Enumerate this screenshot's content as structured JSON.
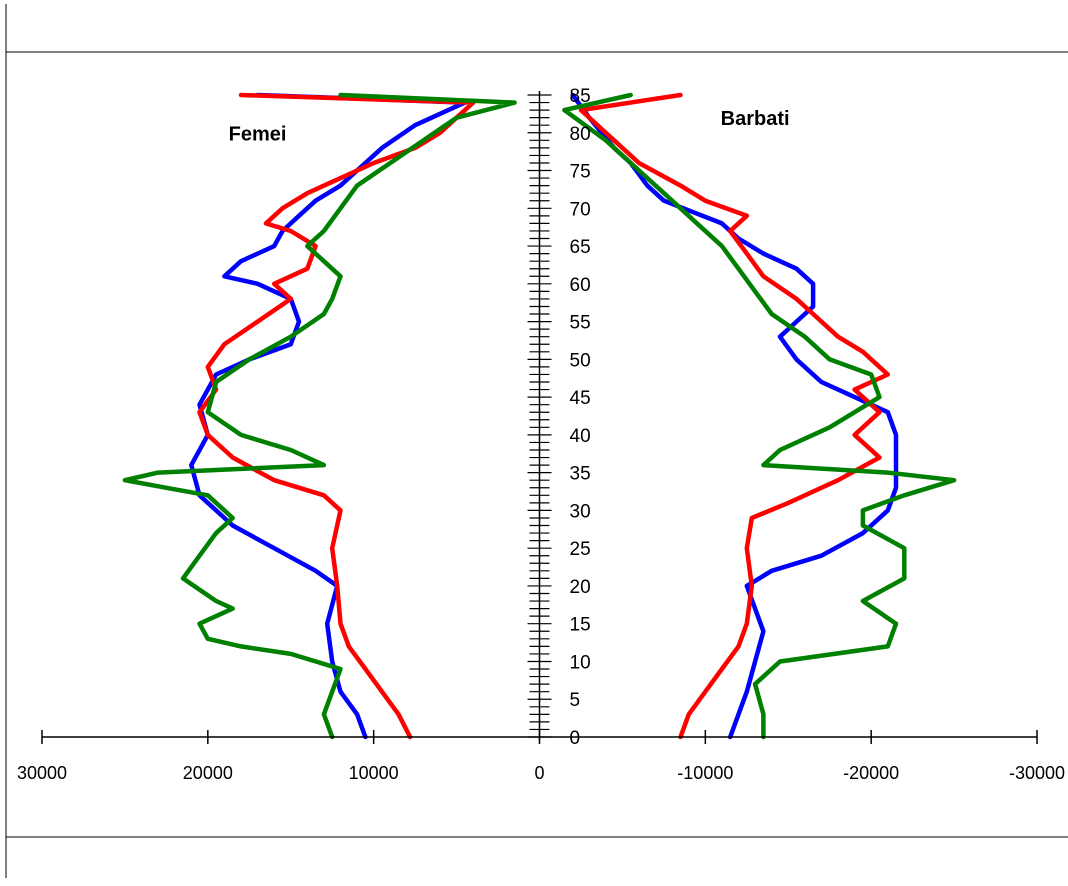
{
  "chart_data": {
    "type": "line",
    "title": "",
    "xlabel": "",
    "ylabel": "",
    "xlim": [
      30000,
      -30000
    ],
    "ylim": [
      0,
      85
    ],
    "grid": false,
    "legend": "none",
    "x_tick_values": [
      30000,
      20000,
      10000,
      0,
      -10000,
      -20000,
      -30000
    ],
    "x_tick_labels": [
      "30000",
      "20000",
      "10000",
      "0",
      "-10000",
      "-20000",
      "-30000"
    ],
    "y_tick_values": [
      0,
      5,
      10,
      15,
      20,
      25,
      30,
      35,
      40,
      45,
      50,
      55,
      60,
      65,
      70,
      75,
      80,
      85
    ],
    "y_tick_labels": [
      "0",
      "5",
      "10",
      "15",
      "20",
      "25",
      "30",
      "35",
      "40",
      "45",
      "50",
      "55",
      "60",
      "65",
      "70",
      "75",
      "80",
      "85"
    ],
    "annotations": [
      {
        "text": "Femei",
        "x": 17000,
        "y": 79
      },
      {
        "text": "Barbati",
        "x": -13000,
        "y": 81
      }
    ],
    "series": [
      {
        "color": "#0000ff",
        "side": "left",
        "points": [
          [
            10500,
            0
          ],
          [
            11000,
            3
          ],
          [
            12000,
            6
          ],
          [
            12500,
            10
          ],
          [
            12800,
            15
          ],
          [
            12200,
            20
          ],
          [
            13500,
            22
          ],
          [
            16000,
            25
          ],
          [
            18500,
            28
          ],
          [
            20500,
            32
          ],
          [
            21000,
            36
          ],
          [
            20000,
            40
          ],
          [
            20500,
            44
          ],
          [
            19500,
            48
          ],
          [
            17500,
            50
          ],
          [
            15000,
            52
          ],
          [
            14500,
            55
          ],
          [
            15000,
            58
          ],
          [
            17000,
            60
          ],
          [
            19000,
            61
          ],
          [
            18000,
            63
          ],
          [
            16000,
            65
          ],
          [
            15500,
            67
          ],
          [
            14500,
            69
          ],
          [
            13500,
            71
          ],
          [
            12000,
            73
          ],
          [
            11000,
            75
          ],
          [
            9500,
            78
          ],
          [
            7500,
            81
          ],
          [
            5500,
            83
          ],
          [
            4500,
            84
          ],
          [
            17000,
            85
          ]
        ]
      },
      {
        "color": "#ff0000",
        "side": "left",
        "points": [
          [
            7800,
            0
          ],
          [
            8500,
            3
          ],
          [
            9500,
            6
          ],
          [
            10500,
            9
          ],
          [
            11500,
            12
          ],
          [
            12000,
            15
          ],
          [
            12200,
            20
          ],
          [
            12500,
            25
          ],
          [
            12000,
            30
          ],
          [
            13000,
            32
          ],
          [
            16000,
            34
          ],
          [
            18500,
            37
          ],
          [
            20000,
            40
          ],
          [
            20500,
            43
          ],
          [
            19500,
            46
          ],
          [
            20000,
            49
          ],
          [
            19000,
            52
          ],
          [
            17000,
            55
          ],
          [
            15000,
            58
          ],
          [
            16000,
            60
          ],
          [
            14000,
            62
          ],
          [
            13500,
            65
          ],
          [
            15000,
            67
          ],
          [
            16500,
            68
          ],
          [
            15500,
            70
          ],
          [
            14000,
            72
          ],
          [
            12000,
            74
          ],
          [
            10000,
            76
          ],
          [
            7500,
            78
          ],
          [
            6000,
            80
          ],
          [
            5000,
            82
          ],
          [
            4000,
            84
          ],
          [
            18000,
            85
          ]
        ]
      },
      {
        "color": "#008000",
        "side": "left",
        "points": [
          [
            12500,
            0
          ],
          [
            13000,
            3
          ],
          [
            12500,
            6
          ],
          [
            12000,
            9
          ],
          [
            15000,
            11
          ],
          [
            18000,
            12
          ],
          [
            20000,
            13
          ],
          [
            20500,
            15
          ],
          [
            18500,
            17
          ],
          [
            19500,
            18
          ],
          [
            21500,
            21
          ],
          [
            20500,
            24
          ],
          [
            19500,
            27
          ],
          [
            18500,
            29
          ],
          [
            20000,
            32
          ],
          [
            22500,
            33
          ],
          [
            25000,
            34
          ],
          [
            23000,
            35
          ],
          [
            13000,
            36
          ],
          [
            15000,
            38
          ],
          [
            18000,
            40
          ],
          [
            20000,
            43
          ],
          [
            19500,
            47
          ],
          [
            17500,
            50
          ],
          [
            15000,
            53
          ],
          [
            13000,
            56
          ],
          [
            12500,
            58
          ],
          [
            12000,
            61
          ],
          [
            13000,
            63
          ],
          [
            14000,
            65
          ],
          [
            13000,
            67
          ],
          [
            12000,
            70
          ],
          [
            11000,
            73
          ],
          [
            9000,
            76
          ],
          [
            7000,
            79
          ],
          [
            5000,
            82
          ],
          [
            1500,
            84
          ],
          [
            12000,
            85
          ]
        ]
      },
      {
        "color": "#0000ff",
        "side": "right",
        "points": [
          [
            -11500,
            0
          ],
          [
            -12000,
            3
          ],
          [
            -12500,
            6
          ],
          [
            -13000,
            10
          ],
          [
            -13500,
            14
          ],
          [
            -13000,
            17
          ],
          [
            -12500,
            20
          ],
          [
            -14000,
            22
          ],
          [
            -17000,
            24
          ],
          [
            -19500,
            27
          ],
          [
            -21000,
            30
          ],
          [
            -21500,
            33
          ],
          [
            -21500,
            35
          ],
          [
            -21500,
            40
          ],
          [
            -21000,
            43
          ],
          [
            -19000,
            45
          ],
          [
            -17000,
            47
          ],
          [
            -15500,
            50
          ],
          [
            -14500,
            53
          ],
          [
            -15500,
            55
          ],
          [
            -16500,
            57
          ],
          [
            -16500,
            60
          ],
          [
            -15500,
            62
          ],
          [
            -13500,
            64
          ],
          [
            -12000,
            66
          ],
          [
            -11000,
            68
          ],
          [
            -7500,
            71
          ],
          [
            -6500,
            73
          ],
          [
            -5500,
            76
          ],
          [
            -4500,
            78
          ],
          [
            -3000,
            82
          ],
          [
            -2000,
            85
          ]
        ]
      },
      {
        "color": "#ff0000",
        "side": "right",
        "points": [
          [
            -8500,
            0
          ],
          [
            -9000,
            3
          ],
          [
            -10000,
            6
          ],
          [
            -11000,
            9
          ],
          [
            -12000,
            12
          ],
          [
            -12500,
            15
          ],
          [
            -12800,
            20
          ],
          [
            -12500,
            25
          ],
          [
            -12800,
            29
          ],
          [
            -15000,
            31
          ],
          [
            -18000,
            34
          ],
          [
            -20500,
            37
          ],
          [
            -19000,
            40
          ],
          [
            -20500,
            43
          ],
          [
            -19000,
            46
          ],
          [
            -21000,
            48
          ],
          [
            -19500,
            51
          ],
          [
            -18000,
            53
          ],
          [
            -16500,
            56
          ],
          [
            -15500,
            58
          ],
          [
            -13500,
            61
          ],
          [
            -12500,
            64
          ],
          [
            -11500,
            67
          ],
          [
            -12500,
            69
          ],
          [
            -10000,
            71
          ],
          [
            -8500,
            73
          ],
          [
            -6000,
            76
          ],
          [
            -4000,
            80
          ],
          [
            -2500,
            83
          ],
          [
            -8500,
            85
          ]
        ]
      },
      {
        "color": "#008000",
        "side": "right",
        "points": [
          [
            -13500,
            0
          ],
          [
            -13500,
            3
          ],
          [
            -13000,
            7
          ],
          [
            -14500,
            10
          ],
          [
            -21000,
            12
          ],
          [
            -21500,
            15
          ],
          [
            -19500,
            18
          ],
          [
            -22000,
            21
          ],
          [
            -22000,
            25
          ],
          [
            -19500,
            28
          ],
          [
            -19500,
            30
          ],
          [
            -22000,
            32
          ],
          [
            -25000,
            34
          ],
          [
            -21000,
            35
          ],
          [
            -13500,
            36
          ],
          [
            -14500,
            38
          ],
          [
            -17500,
            41
          ],
          [
            -19000,
            43
          ],
          [
            -20500,
            45
          ],
          [
            -20000,
            48
          ],
          [
            -17500,
            50
          ],
          [
            -16000,
            53
          ],
          [
            -14000,
            56
          ],
          [
            -13000,
            59
          ],
          [
            -12000,
            62
          ],
          [
            -11000,
            65
          ],
          [
            -9500,
            68
          ],
          [
            -8000,
            71
          ],
          [
            -6000,
            75
          ],
          [
            -4000,
            79
          ],
          [
            -1500,
            83
          ],
          [
            -5500,
            85
          ]
        ]
      }
    ]
  }
}
